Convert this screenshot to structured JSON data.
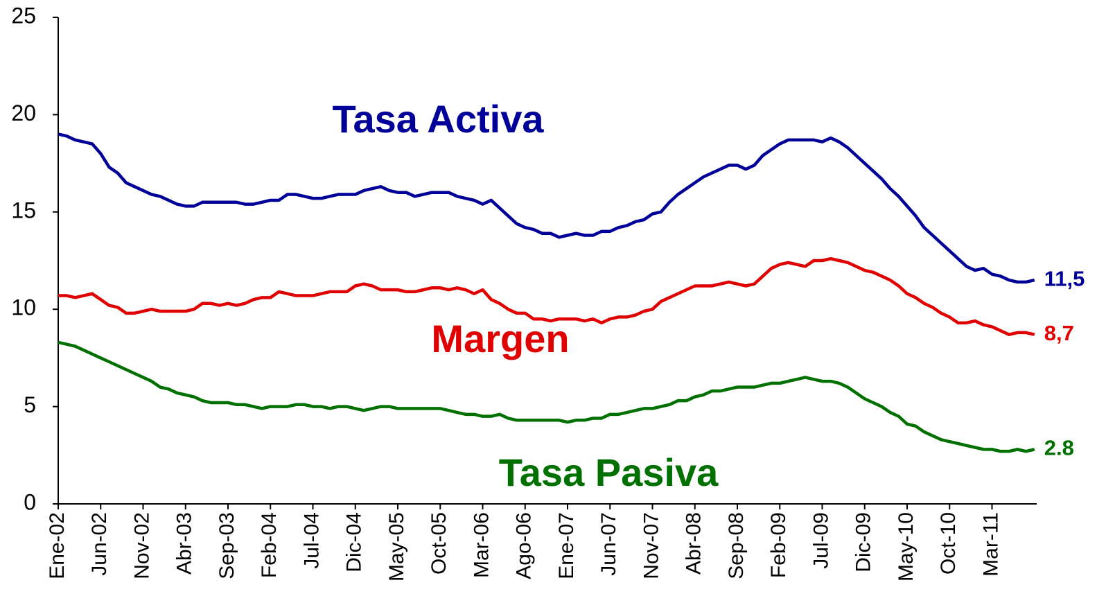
{
  "chart_data": {
    "type": "line",
    "categories": [
      "Ene-02",
      null,
      null,
      null,
      null,
      "Jun-02",
      null,
      null,
      null,
      null,
      "Nov-02",
      null,
      null,
      null,
      null,
      "Abr-03",
      null,
      null,
      null,
      null,
      "Sep-03",
      null,
      null,
      null,
      null,
      "Feb-04",
      null,
      null,
      null,
      null,
      "Jul-04",
      null,
      null,
      null,
      null,
      "Dic-04",
      null,
      null,
      null,
      null,
      "May-05",
      null,
      null,
      null,
      null,
      "Oct-05",
      null,
      null,
      null,
      null,
      "Mar-06",
      null,
      null,
      null,
      null,
      "Ago-06",
      null,
      null,
      null,
      null,
      "Ene-07",
      null,
      null,
      null,
      null,
      "Jun-07",
      null,
      null,
      null,
      null,
      "Nov-07",
      null,
      null,
      null,
      null,
      "Abr-08",
      null,
      null,
      null,
      null,
      "Sep-08",
      null,
      null,
      null,
      null,
      "Feb-09",
      null,
      null,
      null,
      null,
      "Jul-09",
      null,
      null,
      null,
      null,
      "Dic-09",
      null,
      null,
      null,
      null,
      "May-10",
      null,
      null,
      null,
      null,
      "Oct-10",
      null,
      null,
      null,
      null,
      "Mar-11",
      null,
      null,
      null,
      null,
      null
    ],
    "series": [
      {
        "name": "Tasa Activa",
        "color": "#000099",
        "end_label": "11,5",
        "values": [
          19.0,
          18.9,
          18.7,
          18.6,
          18.5,
          18.0,
          17.3,
          17.0,
          16.5,
          16.3,
          16.1,
          15.9,
          15.8,
          15.6,
          15.4,
          15.3,
          15.3,
          15.5,
          15.5,
          15.5,
          15.5,
          15.5,
          15.4,
          15.4,
          15.5,
          15.6,
          15.6,
          15.9,
          15.9,
          15.8,
          15.7,
          15.7,
          15.8,
          15.9,
          15.9,
          15.9,
          16.1,
          16.2,
          16.3,
          16.1,
          16.0,
          16.0,
          15.8,
          15.9,
          16.0,
          16.0,
          16.0,
          15.8,
          15.7,
          15.6,
          15.4,
          15.6,
          15.2,
          14.8,
          14.4,
          14.2,
          14.1,
          13.9,
          13.9,
          13.7,
          13.8,
          13.9,
          13.8,
          13.8,
          14.0,
          14.0,
          14.2,
          14.3,
          14.5,
          14.6,
          14.9,
          15.0,
          15.5,
          15.9,
          16.2,
          16.5,
          16.8,
          17.0,
          17.2,
          17.4,
          17.4,
          17.2,
          17.4,
          17.9,
          18.2,
          18.5,
          18.7,
          18.7,
          18.7,
          18.7,
          18.6,
          18.8,
          18.6,
          18.3,
          17.9,
          17.5,
          17.1,
          16.7,
          16.2,
          15.8,
          15.3,
          14.8,
          14.2,
          13.8,
          13.4,
          13.0,
          12.6,
          12.2,
          12.0,
          12.1,
          11.8,
          11.7,
          11.5,
          11.4,
          11.4,
          11.5
        ]
      },
      {
        "name": "Margen",
        "color": "#e00000",
        "end_label": "8,7",
        "values": [
          10.7,
          10.7,
          10.6,
          10.7,
          10.8,
          10.5,
          10.2,
          10.1,
          9.8,
          9.8,
          9.9,
          10.0,
          9.9,
          9.9,
          9.9,
          9.9,
          10.0,
          10.3,
          10.3,
          10.2,
          10.3,
          10.2,
          10.3,
          10.5,
          10.6,
          10.6,
          10.9,
          10.8,
          10.7,
          10.7,
          10.7,
          10.8,
          10.9,
          10.9,
          10.9,
          11.2,
          11.3,
          11.2,
          11.0,
          11.0,
          11.0,
          10.9,
          10.9,
          11.0,
          11.1,
          11.1,
          11.0,
          11.1,
          11.0,
          10.8,
          11.0,
          10.5,
          10.3,
          10.0,
          9.8,
          9.8,
          9.5,
          9.5,
          9.4,
          9.5,
          9.5,
          9.5,
          9.4,
          9.5,
          9.3,
          9.5,
          9.6,
          9.6,
          9.7,
          9.9,
          10.0,
          10.4,
          10.6,
          10.8,
          11.0,
          11.2,
          11.2,
          11.2,
          11.3,
          11.4,
          11.3,
          11.2,
          11.3,
          11.7,
          12.1,
          12.3,
          12.4,
          12.3,
          12.2,
          12.5,
          12.5,
          12.6,
          12.5,
          12.4,
          12.2,
          12.0,
          11.9,
          11.7,
          11.5,
          11.2,
          10.8,
          10.6,
          10.3,
          10.1,
          9.8,
          9.6,
          9.3,
          9.3,
          9.4,
          9.2,
          9.1,
          8.9,
          8.7,
          8.8,
          8.8,
          8.7
        ]
      },
      {
        "name": "Tasa Pasiva",
        "color": "#007000",
        "end_label": "2.8",
        "values": [
          8.3,
          8.2,
          8.1,
          7.9,
          7.7,
          7.5,
          7.3,
          7.1,
          6.9,
          6.7,
          6.5,
          6.3,
          6.0,
          5.9,
          5.7,
          5.6,
          5.5,
          5.3,
          5.2,
          5.2,
          5.2,
          5.1,
          5.1,
          5.0,
          4.9,
          5.0,
          5.0,
          5.0,
          5.1,
          5.1,
          5.0,
          5.0,
          4.9,
          5.0,
          5.0,
          4.9,
          4.8,
          4.9,
          5.0,
          5.0,
          4.9,
          4.9,
          4.9,
          4.9,
          4.9,
          4.9,
          4.8,
          4.7,
          4.6,
          4.6,
          4.5,
          4.5,
          4.6,
          4.4,
          4.3,
          4.3,
          4.3,
          4.3,
          4.3,
          4.3,
          4.2,
          4.3,
          4.3,
          4.4,
          4.4,
          4.6,
          4.6,
          4.7,
          4.8,
          4.9,
          4.9,
          5.0,
          5.1,
          5.3,
          5.3,
          5.5,
          5.6,
          5.8,
          5.8,
          5.9,
          6.0,
          6.0,
          6.0,
          6.1,
          6.2,
          6.2,
          6.3,
          6.4,
          6.5,
          6.4,
          6.3,
          6.3,
          6.2,
          6.0,
          5.7,
          5.4,
          5.2,
          5.0,
          4.7,
          4.5,
          4.1,
          4.0,
          3.7,
          3.5,
          3.3,
          3.2,
          3.1,
          3.0,
          2.9,
          2.8,
          2.8,
          2.7,
          2.7,
          2.8,
          2.7,
          2.8
        ]
      }
    ],
    "ylim": [
      0,
      25
    ],
    "yticks": [
      0,
      5,
      10,
      15,
      20,
      25
    ],
    "grid": false
  }
}
